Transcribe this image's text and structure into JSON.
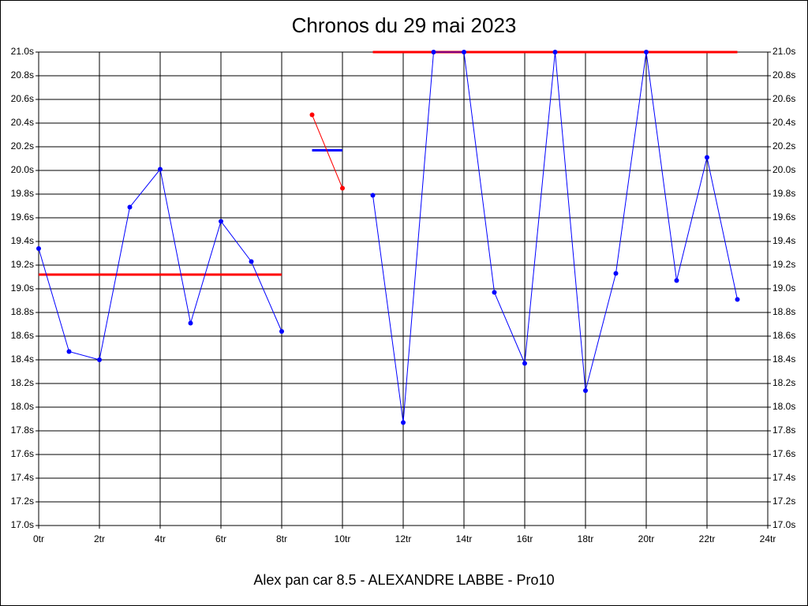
{
  "chart_data": {
    "type": "line",
    "title": "Chronos du 29 mai 2023",
    "footer": "Alex pan car 8.5 - ALEXANDRE LABBE - Pro10",
    "x": [
      0,
      1,
      2,
      3,
      4,
      5,
      6,
      7,
      8,
      9,
      10,
      11,
      12,
      13,
      14,
      15,
      16,
      17,
      18,
      19,
      20,
      21,
      22,
      23
    ],
    "series": [
      {
        "color": "#0000ff",
        "values": [
          19.34,
          18.47,
          18.4,
          19.69,
          20.01,
          18.71,
          19.57,
          19.23,
          18.64,
          null,
          null,
          19.79,
          17.87,
          21.0,
          21.0,
          18.97,
          18.37,
          21.0,
          18.14,
          19.13,
          21.0,
          19.07,
          20.11,
          18.91
        ]
      },
      {
        "color": "#ff0000",
        "values": [
          null,
          null,
          null,
          null,
          null,
          null,
          null,
          null,
          null,
          20.47,
          19.85,
          null,
          null,
          null,
          null,
          null,
          null,
          null,
          null,
          null,
          null,
          null,
          null,
          null
        ]
      }
    ],
    "averages": [
      {
        "x": [
          0,
          8
        ],
        "value": 19.12,
        "color": "#ff0000"
      },
      {
        "x": [
          9,
          10
        ],
        "value": 20.17,
        "color": "#0000ff"
      },
      {
        "x": [
          11,
          23
        ],
        "value": 21.0,
        "color": "#ff0000"
      }
    ],
    "xlim": [
      0,
      24
    ],
    "xticks": [
      {
        "value": 0,
        "label": "0tr"
      },
      {
        "value": 2,
        "label": "2tr"
      },
      {
        "value": 4,
        "label": "4tr"
      },
      {
        "value": 6,
        "label": "6tr"
      },
      {
        "value": 8,
        "label": "8tr"
      },
      {
        "value": 10,
        "label": "10tr"
      },
      {
        "value": 12,
        "label": "12tr"
      },
      {
        "value": 14,
        "label": "14tr"
      },
      {
        "value": 16,
        "label": "16tr"
      },
      {
        "value": 18,
        "label": "18tr"
      },
      {
        "value": 20,
        "label": "20tr"
      },
      {
        "value": 22,
        "label": "22tr"
      },
      {
        "value": 24,
        "label": "24tr"
      }
    ],
    "ylim": [
      17.0,
      21.0
    ],
    "yticks": [
      {
        "value": 17.0,
        "label": "17.0s"
      },
      {
        "value": 17.2,
        "label": "17.2s"
      },
      {
        "value": 17.4,
        "label": "17.4s"
      },
      {
        "value": 17.6,
        "label": "17.6s"
      },
      {
        "value": 17.8,
        "label": "17.8s"
      },
      {
        "value": 18.0,
        "label": "18.0s"
      },
      {
        "value": 18.2,
        "label": "18.2s"
      },
      {
        "value": 18.4,
        "label": "18.4s"
      },
      {
        "value": 18.6,
        "label": "18.6s"
      },
      {
        "value": 18.8,
        "label": "18.8s"
      },
      {
        "value": 19.0,
        "label": "19.0s"
      },
      {
        "value": 19.2,
        "label": "19.2s"
      },
      {
        "value": 19.4,
        "label": "19.4s"
      },
      {
        "value": 19.6,
        "label": "19.6s"
      },
      {
        "value": 19.8,
        "label": "19.8s"
      },
      {
        "value": 20.0,
        "label": "20.0s"
      },
      {
        "value": 20.2,
        "label": "20.2s"
      },
      {
        "value": 20.4,
        "label": "20.4s"
      },
      {
        "value": 20.6,
        "label": "20.6s"
      },
      {
        "value": 20.8,
        "label": "20.8s"
      },
      {
        "value": 21.0,
        "label": "21.0s"
      }
    ],
    "grid": true
  }
}
